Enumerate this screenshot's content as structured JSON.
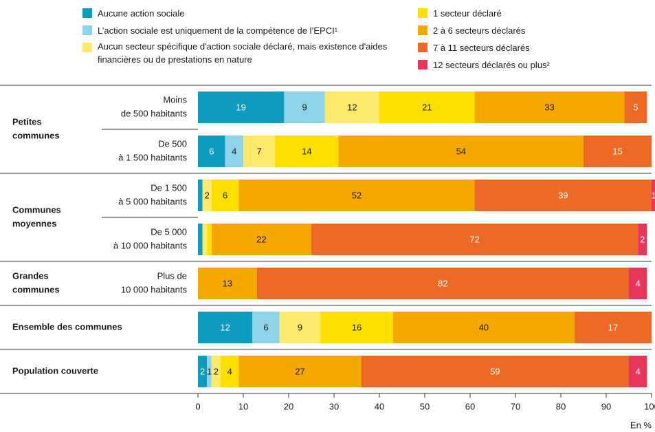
{
  "chart_data": {
    "type": "stacked-bar-horizontal",
    "groups": [
      {
        "name": [
          "Petites",
          "communes"
        ],
        "categories": [
          [
            "Moins",
            "de 500 habitants"
          ],
          [
            "De 500",
            "à 1 500 habitants"
          ]
        ]
      },
      {
        "name": [
          "Communes",
          "moyennes"
        ],
        "categories": [
          [
            "De 1 500",
            "à 5 000 habitants"
          ],
          [
            "De 5 000",
            "à 10 000 habitants"
          ]
        ]
      },
      {
        "name": [
          "Grandes",
          "communes"
        ],
        "categories": [
          [
            "Plus de",
            "10 000 habitants"
          ]
        ]
      },
      {
        "name": [
          "Ensemble des communes"
        ],
        "categories": [
          null
        ]
      },
      {
        "name": [
          "Population couverte"
        ],
        "categories": [
          null
        ]
      }
    ],
    "series": [
      {
        "name": "Aucune action sociale",
        "color": "#0e9bc0",
        "values": [
          19,
          6,
          1,
          1,
          null,
          12,
          2
        ],
        "value_labels": [
          19,
          6,
          null,
          null,
          null,
          12,
          2
        ]
      },
      {
        "name": "L’action sociale est uniquement de la compétence de l’EPCI¹",
        "color": "#8fd3e8",
        "values": [
          9,
          4,
          null,
          null,
          null,
          6,
          1
        ],
        "value_labels": [
          9,
          4,
          null,
          null,
          null,
          6,
          1
        ]
      },
      {
        "name": "Aucun secteur spécifique d'action sociale déclaré, mais existence d'aides financières ou de prestations en nature",
        "color": "#fde96c",
        "values": [
          12,
          7,
          2,
          1,
          null,
          9,
          2
        ],
        "value_labels": [
          12,
          7,
          2,
          null,
          null,
          9,
          2
        ]
      },
      {
        "name": "1 secteur déclaré",
        "color": "#fde000",
        "values": [
          21,
          14,
          6,
          1,
          null,
          16,
          4
        ],
        "value_labels": [
          21,
          14,
          6,
          null,
          null,
          16,
          4
        ]
      },
      {
        "name": "2 à 6 secteurs déclarés",
        "color": "#f5a800",
        "values": [
          33,
          54,
          52,
          22,
          13,
          40,
          27
        ],
        "value_labels": [
          33,
          54,
          52,
          22,
          13,
          40,
          27
        ]
      },
      {
        "name": "7 à 11 secteurs déclarés",
        "color": "#ec6a25",
        "values": [
          5,
          15,
          39,
          72,
          82,
          17,
          59
        ],
        "value_labels": [
          5,
          15,
          39,
          72,
          82,
          17,
          59
        ]
      },
      {
        "name": "12 secteurs déclarés ou plus²",
        "color": "#e6375a",
        "values": [
          null,
          null,
          1,
          2,
          4,
          null,
          4
        ],
        "value_labels": [
          null,
          null,
          1,
          2,
          4,
          null,
          4
        ]
      }
    ],
    "xlim": [
      0,
      100
    ],
    "xticks": [
      0,
      10,
      20,
      30,
      40,
      50,
      60,
      70,
      80,
      90,
      100
    ],
    "xlabel": "En %"
  }
}
